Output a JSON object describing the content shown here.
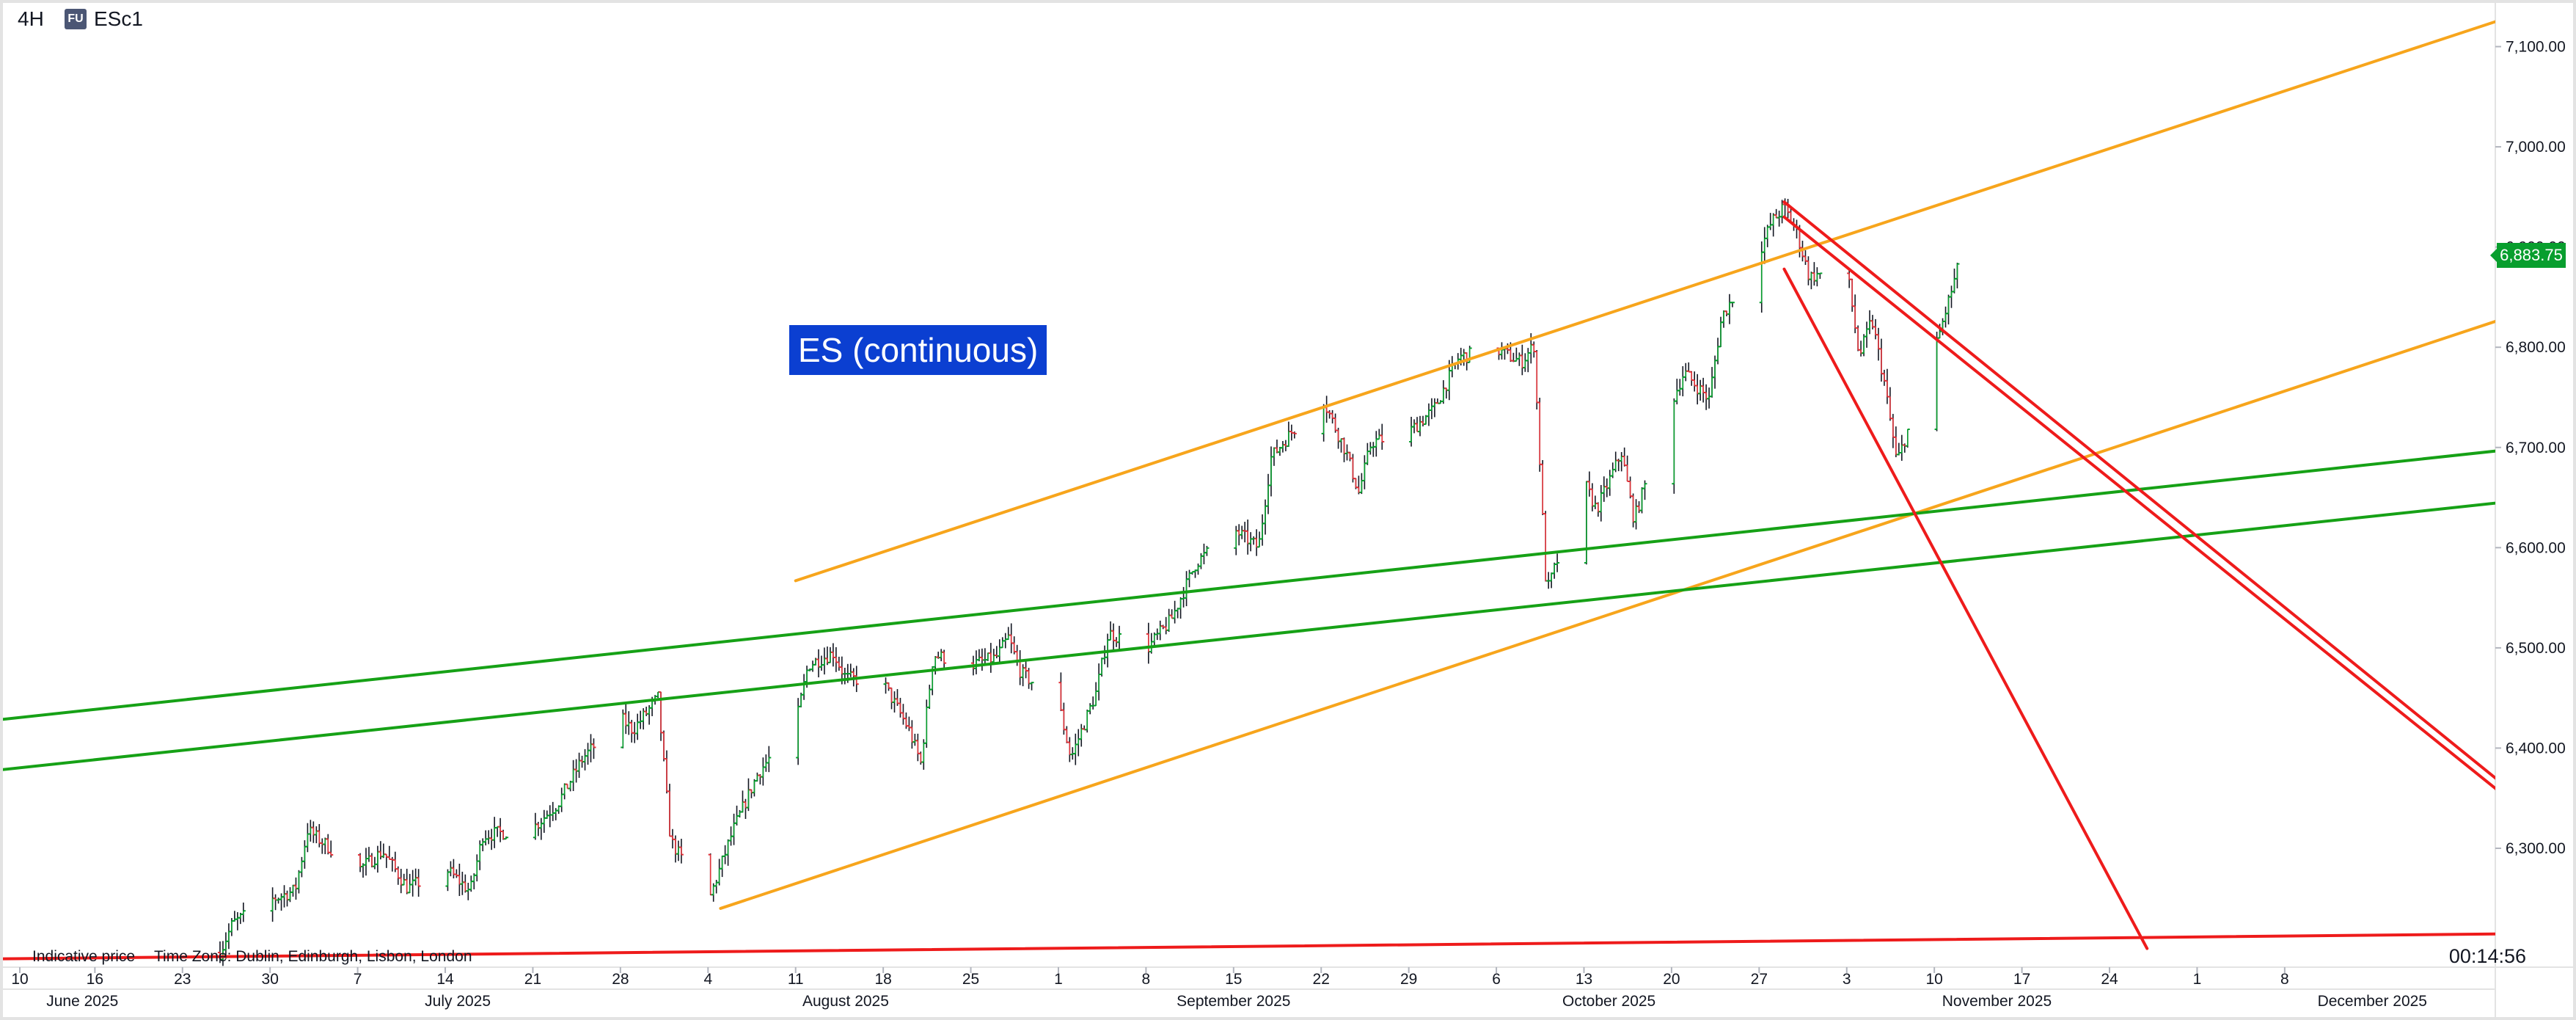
{
  "header": {
    "interval": "4H",
    "badge": "FU",
    "symbol": "ESc1"
  },
  "annotation": "ES (continuous)",
  "footer": {
    "indicative_price": "Indicative price",
    "time_zone": "Time Zone: Dublin, Edinburgh, Lisbon, London",
    "countdown": "00:14:56"
  },
  "last_price": {
    "label": "6,883.75",
    "value": 6883.75,
    "color": "#089e2e"
  },
  "colors": {
    "up": "#089e2e",
    "down": "#e0333a",
    "wick": "#131722",
    "orange": "#f7a51c",
    "green": "#16a116",
    "red": "#ee1b1b",
    "annotation_bg": "#0b3fd1"
  },
  "chart_data": {
    "type": "candlestick",
    "y_ticks": [
      {
        "value": 6300,
        "label": "6,300.00"
      },
      {
        "value": 6400,
        "label": "6,400.00"
      },
      {
        "value": 6500,
        "label": "6,500.00"
      },
      {
        "value": 6600,
        "label": "6,600.00"
      },
      {
        "value": 6700,
        "label": "6,700.00"
      },
      {
        "value": 6800,
        "label": "6,800.00"
      },
      {
        "value": 6900,
        "label": "6,900.00"
      },
      {
        "value": 7000,
        "label": "7,000.00"
      },
      {
        "value": 7100,
        "label": "7,100.00"
      }
    ],
    "x_ticks": [
      {
        "date": "2025-06-10",
        "label": "10"
      },
      {
        "date": "2025-06-16",
        "label": "16"
      },
      {
        "date": "2025-06-23",
        "label": "23"
      },
      {
        "date": "2025-06-30",
        "label": "30"
      },
      {
        "date": "2025-07-07",
        "label": "7"
      },
      {
        "date": "2025-07-14",
        "label": "14"
      },
      {
        "date": "2025-07-21",
        "label": "21"
      },
      {
        "date": "2025-07-28",
        "label": "28"
      },
      {
        "date": "2025-08-04",
        "label": "4"
      },
      {
        "date": "2025-08-11",
        "label": "11"
      },
      {
        "date": "2025-08-18",
        "label": "18"
      },
      {
        "date": "2025-08-25",
        "label": "25"
      },
      {
        "date": "2025-09-01",
        "label": "1"
      },
      {
        "date": "2025-09-08",
        "label": "8"
      },
      {
        "date": "2025-09-15",
        "label": "15"
      },
      {
        "date": "2025-09-22",
        "label": "22"
      },
      {
        "date": "2025-09-29",
        "label": "29"
      },
      {
        "date": "2025-10-06",
        "label": "6"
      },
      {
        "date": "2025-10-13",
        "label": "13"
      },
      {
        "date": "2025-10-20",
        "label": "20"
      },
      {
        "date": "2025-10-27",
        "label": "27"
      },
      {
        "date": "2025-11-03",
        "label": "3"
      },
      {
        "date": "2025-11-10",
        "label": "10"
      },
      {
        "date": "2025-11-17",
        "label": "17"
      },
      {
        "date": "2025-11-24",
        "label": "24"
      },
      {
        "date": "2025-12-01",
        "label": "1"
      },
      {
        "date": "2025-12-08",
        "label": "8"
      }
    ],
    "month_labels": [
      {
        "date": "2025-06-15",
        "label": "June 2025"
      },
      {
        "date": "2025-07-15",
        "label": "July 2025"
      },
      {
        "date": "2025-08-15",
        "label": "August 2025"
      },
      {
        "date": "2025-09-15",
        "label": "September 2025"
      },
      {
        "date": "2025-10-15",
        "label": "October 2025"
      },
      {
        "date": "2025-11-15",
        "label": "November 2025"
      },
      {
        "date": "2025-12-15",
        "label": "December 2025"
      }
    ],
    "price_path": [
      [
        "2025-06-26",
        6196
      ],
      [
        "2025-06-27",
        6225
      ],
      [
        "2025-06-30",
        6248
      ],
      [
        "2025-07-02",
        6258
      ],
      [
        "2025-07-03",
        6318
      ],
      [
        "2025-07-07",
        6278
      ],
      [
        "2025-07-09",
        6297
      ],
      [
        "2025-07-11",
        6260
      ],
      [
        "2025-07-14",
        6280
      ],
      [
        "2025-07-16",
        6257
      ],
      [
        "2025-07-17",
        6313
      ],
      [
        "2025-07-21",
        6320
      ],
      [
        "2025-07-23",
        6345
      ],
      [
        "2025-07-25",
        6390
      ],
      [
        "2025-07-28",
        6430
      ],
      [
        "2025-07-29",
        6418
      ],
      [
        "2025-07-31",
        6450
      ],
      [
        "2025-08-01",
        6308
      ],
      [
        "2025-08-04",
        6245
      ],
      [
        "2025-08-06",
        6318
      ],
      [
        "2025-08-08",
        6375
      ],
      [
        "2025-08-11",
        6423
      ],
      [
        "2025-08-12",
        6483
      ],
      [
        "2025-08-14",
        6495
      ],
      [
        "2025-08-15",
        6470
      ],
      [
        "2025-08-18",
        6465
      ],
      [
        "2025-08-20",
        6420
      ],
      [
        "2025-08-21",
        6385
      ],
      [
        "2025-08-22",
        6493
      ],
      [
        "2025-08-25",
        6483
      ],
      [
        "2025-08-27",
        6490
      ],
      [
        "2025-08-28",
        6510
      ],
      [
        "2025-08-29",
        6475
      ],
      [
        "2025-09-01",
        6445
      ],
      [
        "2025-09-02",
        6390
      ],
      [
        "2025-09-04",
        6455
      ],
      [
        "2025-09-05",
        6515
      ],
      [
        "2025-09-08",
        6498
      ],
      [
        "2025-09-10",
        6528
      ],
      [
        "2025-09-12",
        6585
      ],
      [
        "2025-09-15",
        6618
      ],
      [
        "2025-09-17",
        6600
      ],
      [
        "2025-09-18",
        6690
      ],
      [
        "2025-09-22",
        6752
      ],
      [
        "2025-09-24",
        6695
      ],
      [
        "2025-09-25",
        6655
      ],
      [
        "2025-09-26",
        6705
      ],
      [
        "2025-09-29",
        6715
      ],
      [
        "2025-10-01",
        6738
      ],
      [
        "2025-10-03",
        6790
      ],
      [
        "2025-10-06",
        6798
      ],
      [
        "2025-10-08",
        6785
      ],
      [
        "2025-10-09",
        6802
      ],
      [
        "2025-10-10",
        6555
      ],
      [
        "2025-10-13",
        6665
      ],
      [
        "2025-10-14",
        6638
      ],
      [
        "2025-10-16",
        6695
      ],
      [
        "2025-10-17",
        6628
      ],
      [
        "2025-10-20",
        6745
      ],
      [
        "2025-10-21",
        6775
      ],
      [
        "2025-10-23",
        6748
      ],
      [
        "2025-10-24",
        6830
      ],
      [
        "2025-10-27",
        6895
      ],
      [
        "2025-10-28",
        6925
      ],
      [
        "2025-10-29",
        6940
      ],
      [
        "2025-10-30",
        6915
      ],
      [
        "2025-10-31",
        6870
      ],
      [
        "2025-11-03",
        6880
      ],
      [
        "2025-11-04",
        6790
      ],
      [
        "2025-11-05",
        6828
      ],
      [
        "2025-11-06",
        6765
      ],
      [
        "2025-11-07",
        6685
      ],
      [
        "2025-11-10",
        6795
      ],
      [
        "2025-11-11",
        6840
      ],
      [
        "2025-11-12",
        6884
      ]
    ],
    "trendlines": [
      {
        "color": "orange",
        "start": [
          "2025-08-11",
          6567
        ],
        "end": [
          "2025-12-29",
          7142
        ]
      },
      {
        "color": "orange",
        "start": [
          "2025-08-05",
          6240
        ],
        "end": [
          "2025-12-29",
          6843
        ]
      },
      {
        "color": "green",
        "start": [
          "2025-05-22",
          6405
        ],
        "end": [
          "2025-12-29",
          6702
        ]
      },
      {
        "color": "green",
        "start": [
          "2025-05-22",
          6355
        ],
        "end": [
          "2025-12-29",
          6650
        ]
      },
      {
        "color": "red",
        "start": [
          "2025-06-03",
          6189
        ],
        "end": [
          "2025-12-29",
          6215
        ]
      },
      {
        "color": "red",
        "start": [
          "2025-10-29",
          6945
        ],
        "end": [
          "2025-12-29",
          6328
        ]
      },
      {
        "color": "red",
        "start": [
          "2025-10-29",
          6930
        ],
        "end": [
          "2025-12-29",
          6318
        ]
      },
      {
        "color": "red",
        "start": [
          "2025-10-29",
          6878
        ],
        "end": [
          "2025-11-27",
          6200
        ]
      }
    ]
  }
}
